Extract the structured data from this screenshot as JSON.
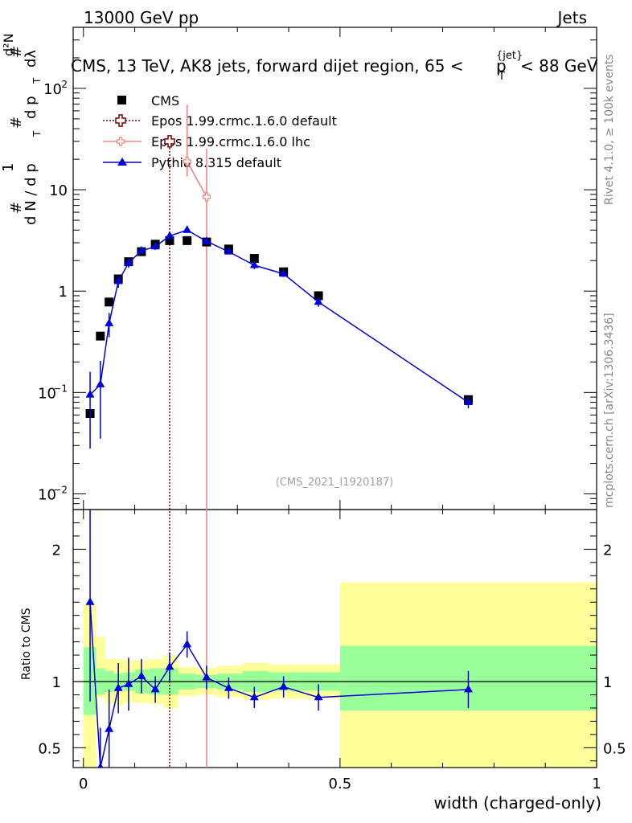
{
  "header": {
    "left": "13000 GeV pp",
    "right": "Jets"
  },
  "side_labels": {
    "rivet": "Rivet 4.1.0, ≥ 100k events",
    "mcplots": "mcplots.cern.ch [arXiv:1306.3436]"
  },
  "chart_data": {
    "type": "scatter",
    "title": "CMS, 13 TeV, AK8 jets, forward dijet region, 65 <",
    "title_sup": "{jet}",
    "title_sub": "T",
    "title_p": "p",
    "title_tail": "< 88 GeV",
    "watermark": "(CMS_2021_I1920187)",
    "xlabel": "width (charged-only)",
    "ylabel_ratio": "Ratio to CMS",
    "ylabel_main": {
      "hash1": "#",
      "one": "1",
      "dN": "d N / d p",
      "T1": "T",
      "hash2": "#",
      "dpT": "d p",
      "T2": "T",
      "dlam": "dλ",
      "hash3": "#",
      "d2N": "d²N"
    },
    "x_range": [
      -0.02,
      1.0
    ],
    "y_range_main_log": [
      0.007,
      400
    ],
    "y_range_ratio": [
      0.35,
      2.3
    ],
    "x_ticks": [
      0,
      0.5,
      1
    ],
    "x_tick_labels": [
      "0",
      "0.5",
      "1"
    ],
    "y_ticks_main": [
      0.01,
      0.1,
      1,
      10,
      100
    ],
    "y_tick_labels_main": [
      {
        "base": "10",
        "exp": "−2"
      },
      {
        "base": "10",
        "exp": "−1"
      },
      {
        "base": "1",
        "exp": ""
      },
      {
        "base": "10",
        "exp": ""
      },
      {
        "base": "10",
        "exp": "2"
      }
    ],
    "y_ticks_ratio": [
      0.5,
      1,
      2
    ],
    "y_tick_labels_ratio": [
      "0.5",
      "1",
      "2"
    ],
    "legend_position": "top-left",
    "series": [
      {
        "name": "CMS",
        "color": "#000000",
        "marker": "square",
        "x": [
          0.013,
          0.033,
          0.05,
          0.068,
          0.088,
          0.113,
          0.14,
          0.168,
          0.202,
          0.24,
          0.283,
          0.333,
          0.39,
          0.458,
          0.75
        ],
        "y": [
          0.062,
          0.36,
          0.78,
          1.32,
          1.95,
          2.45,
          2.9,
          3.15,
          3.15,
          3.05,
          2.6,
          2.1,
          1.55,
          0.9,
          0.085
        ]
      },
      {
        "name": "Epos 1.99.crmc.1.6.0 default",
        "color": "#800000",
        "marker": "open-cross",
        "line": "dotted",
        "x": [
          0.168
        ],
        "y": [
          30
        ],
        "drop_x": 0.168
      },
      {
        "name": "Epos 1.99.crmc.1.6.0 lhc",
        "color": "#f08080",
        "marker": "open-cross-small",
        "line": "solid",
        "x": [
          0.202,
          0.24
        ],
        "y": [
          19,
          8.5
        ],
        "yerr_lo": [
          5.5,
          1e-06
        ],
        "yerr_hi": [
          50,
          17
        ],
        "drop_x": 0.24
      },
      {
        "name": "Pythia 8.315 default",
        "color": "#0000dd",
        "marker": "triangle",
        "line": "solid",
        "x": [
          0.013,
          0.033,
          0.05,
          0.068,
          0.088,
          0.113,
          0.14,
          0.168,
          0.202,
          0.24,
          0.283,
          0.333,
          0.39,
          0.458,
          0.75
        ],
        "y": [
          0.095,
          0.12,
          0.48,
          1.25,
          1.9,
          2.5,
          2.75,
          3.5,
          4.0,
          3.1,
          2.45,
          1.8,
          1.48,
          0.78,
          0.08
        ],
        "yerr_lo": [
          0.067,
          0.085,
          0.13,
          0.17,
          0.2,
          0.2,
          0.2,
          0.25,
          0.25,
          0.2,
          0.15,
          0.15,
          0.1,
          0.08,
          0.01
        ],
        "yerr_hi": [
          0.065,
          0.085,
          0.13,
          0.17,
          0.2,
          0.2,
          0.2,
          0.25,
          0.25,
          0.2,
          0.15,
          0.15,
          0.1,
          0.08,
          0.01
        ]
      }
    ],
    "ratio": {
      "x": [
        0.013,
        0.033,
        0.05,
        0.068,
        0.088,
        0.113,
        0.14,
        0.168,
        0.202,
        0.24,
        0.283,
        0.333,
        0.39,
        0.458,
        0.75
      ],
      "y": [
        1.6,
        0.35,
        0.64,
        0.95,
        0.98,
        1.04,
        0.94,
        1.11,
        1.28,
        1.03,
        0.95,
        0.88,
        0.96,
        0.88,
        0.94
      ],
      "err": [
        0.75,
        0.3,
        0.3,
        0.19,
        0.2,
        0.13,
        0.1,
        0.11,
        0.1,
        0.09,
        0.08,
        0.08,
        0.08,
        0.1,
        0.14
      ],
      "bins": [
        0,
        0.025,
        0.042,
        0.059,
        0.078,
        0.1,
        0.127,
        0.155,
        0.185,
        0.22,
        0.26,
        0.31,
        0.36,
        0.42,
        0.5,
        1.0
      ],
      "band_inner_lo": [
        0.75,
        0.9,
        0.92,
        0.94,
        0.93,
        0.91,
        0.9,
        0.9,
        0.94,
        0.95,
        0.94,
        0.92,
        0.93,
        0.93,
        0.78
      ],
      "band_inner_hi": [
        1.26,
        1.1,
        1.08,
        1.06,
        1.07,
        1.09,
        1.1,
        1.1,
        1.06,
        1.05,
        1.06,
        1.08,
        1.07,
        1.07,
        1.27
      ],
      "band_outer_lo": [
        0.35,
        0.88,
        0.83,
        0.82,
        0.84,
        0.84,
        0.83,
        0.8,
        0.89,
        0.9,
        0.88,
        0.86,
        0.87,
        0.87,
        0.35
      ],
      "band_outer_hi": [
        1.58,
        1.34,
        1.17,
        1.17,
        1.16,
        1.16,
        1.17,
        1.2,
        1.11,
        1.1,
        1.12,
        1.14,
        1.13,
        1.13,
        1.75
      ],
      "band_inner_color": "#99ff99",
      "band_outer_color": "#ffff99"
    }
  }
}
